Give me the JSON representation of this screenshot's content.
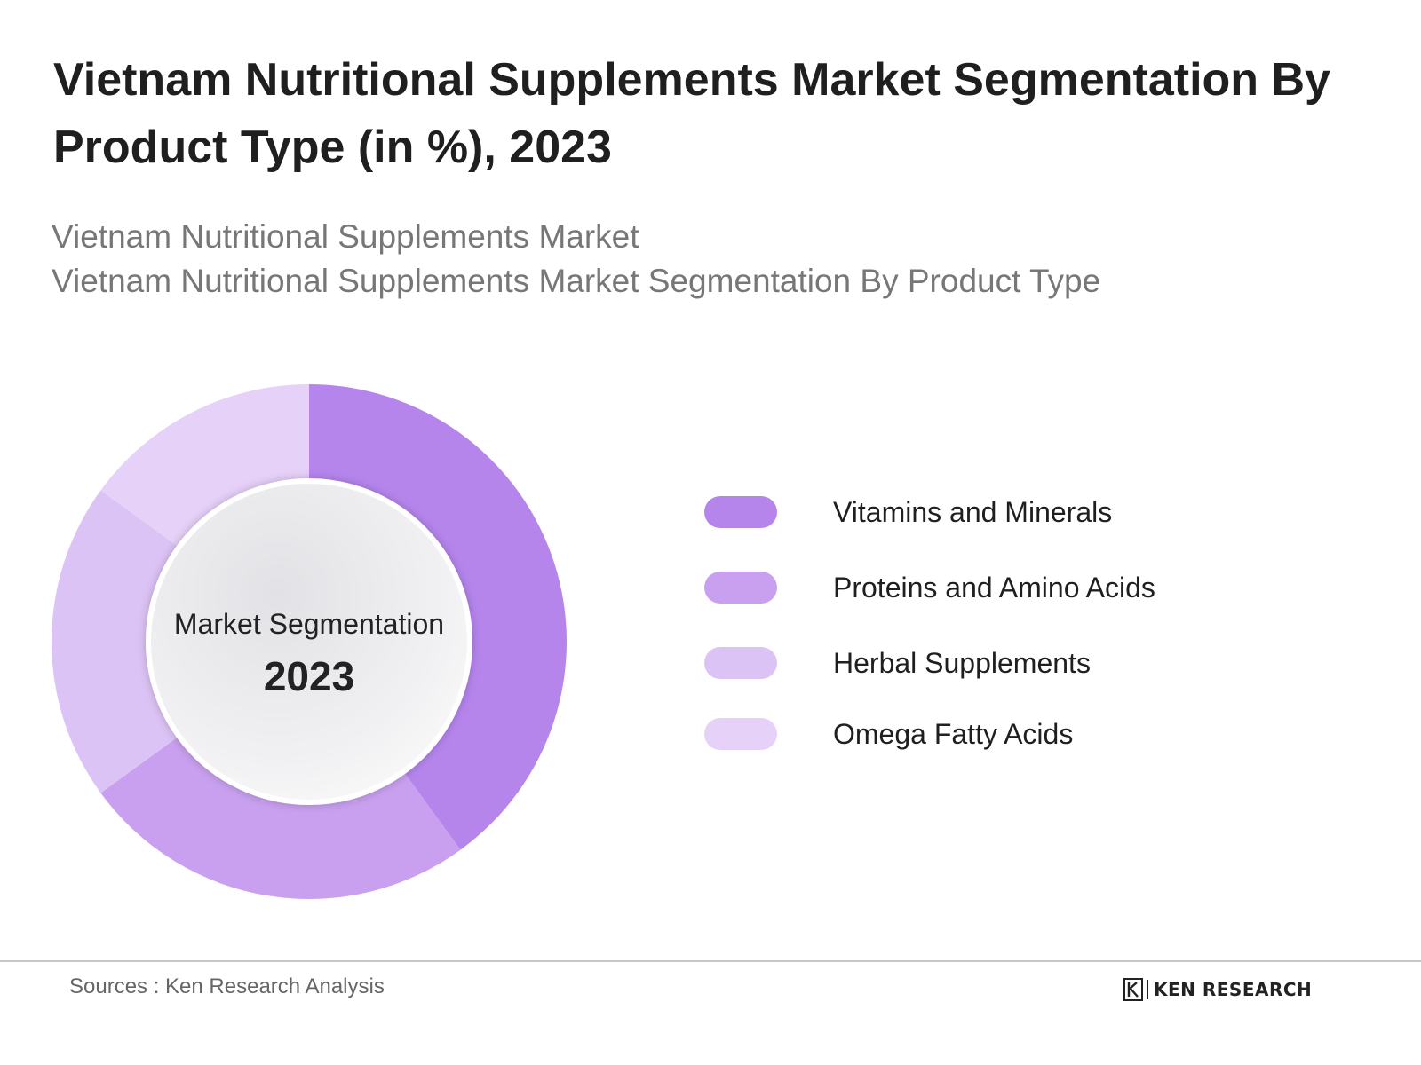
{
  "header": {
    "title": "Vietnam Nutritional Supplements Market Segmentation By Product Type (in %), 2023",
    "subtitle_line1": "Vietnam Nutritional Supplements Market",
    "subtitle_line2": "Vietnam Nutritional Supplements Market Segmentation By Product Type"
  },
  "chart_data": {
    "type": "pie",
    "center_label": "Market Segmentation",
    "center_year": "2023",
    "categories": [
      "Vitamins and Minerals",
      "Proteins and Amino Acids",
      "Herbal Supplements",
      "Omega Fatty Acids"
    ],
    "values": [
      40,
      25,
      20,
      15
    ],
    "colors": [
      "#b585ec",
      "#c8a0ef",
      "#dcc3f5",
      "#e6d1f8"
    ],
    "legend_position": "right"
  },
  "footer": {
    "source": "Sources : Ken Research Analysis",
    "brand": "KEN RESEARCH"
  }
}
